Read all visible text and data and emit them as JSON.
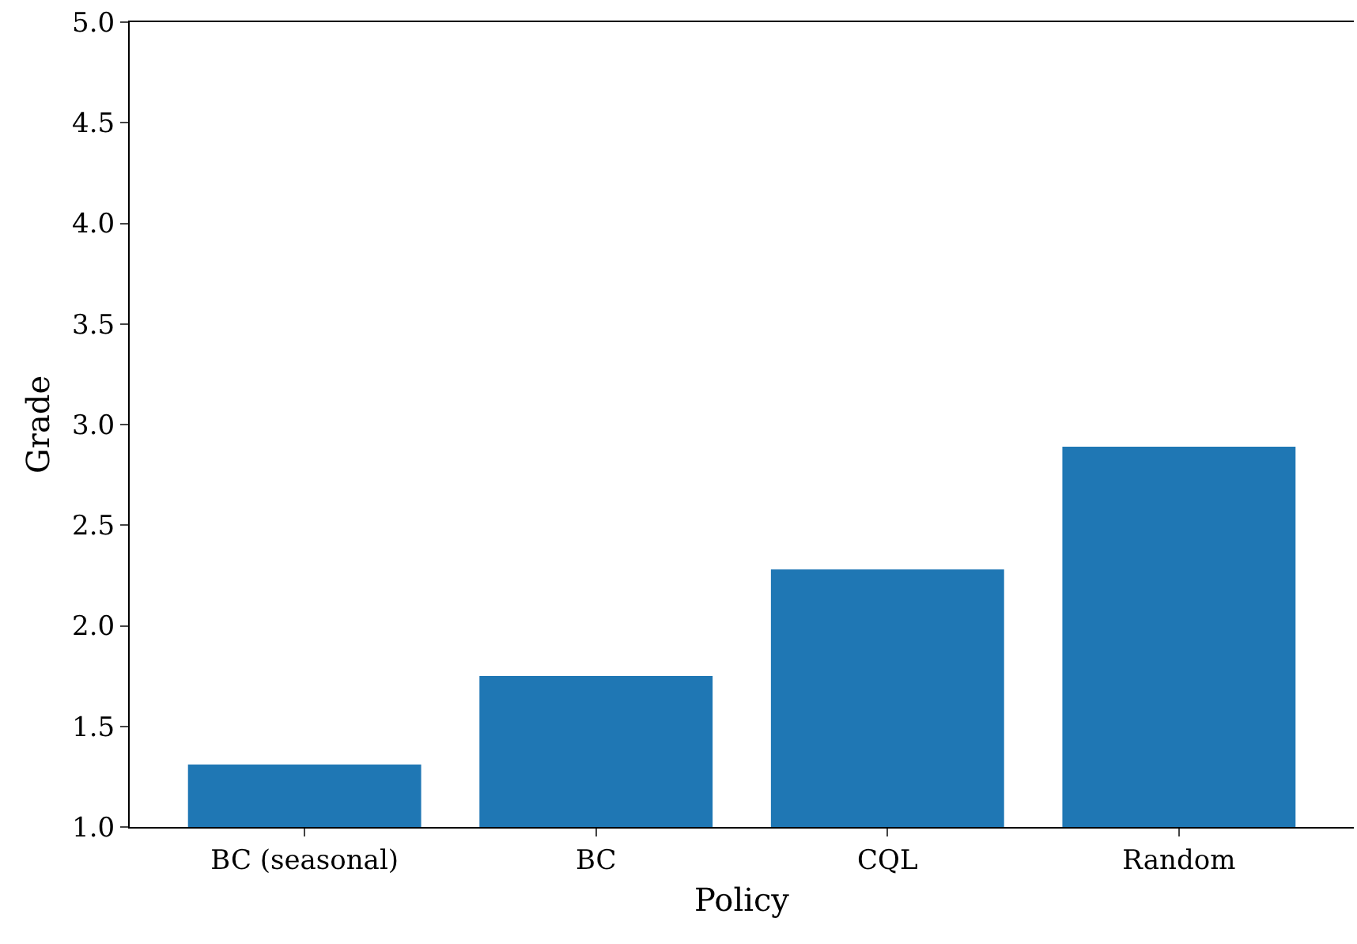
{
  "chart_data": {
    "type": "bar",
    "xlabel": "Policy",
    "ylabel": "Grade",
    "categories": [
      "BC (seasonal)",
      "BC",
      "CQL",
      "Random"
    ],
    "values": [
      1.31,
      1.75,
      2.28,
      2.89
    ],
    "color": "#1f77b4",
    "ylim": [
      1.0,
      5.0
    ],
    "yticks": [
      {
        "value": 1.0,
        "label": "1.0"
      },
      {
        "value": 1.5,
        "label": "1.5"
      },
      {
        "value": 2.0,
        "label": "2.0"
      },
      {
        "value": 2.5,
        "label": "2.5"
      },
      {
        "value": 3.0,
        "label": "3.0"
      },
      {
        "value": 3.5,
        "label": "3.5"
      },
      {
        "value": 4.0,
        "label": "4.0"
      },
      {
        "value": 4.5,
        "label": "4.5"
      },
      {
        "value": 5.0,
        "label": "5.0"
      }
    ],
    "grid": false
  }
}
